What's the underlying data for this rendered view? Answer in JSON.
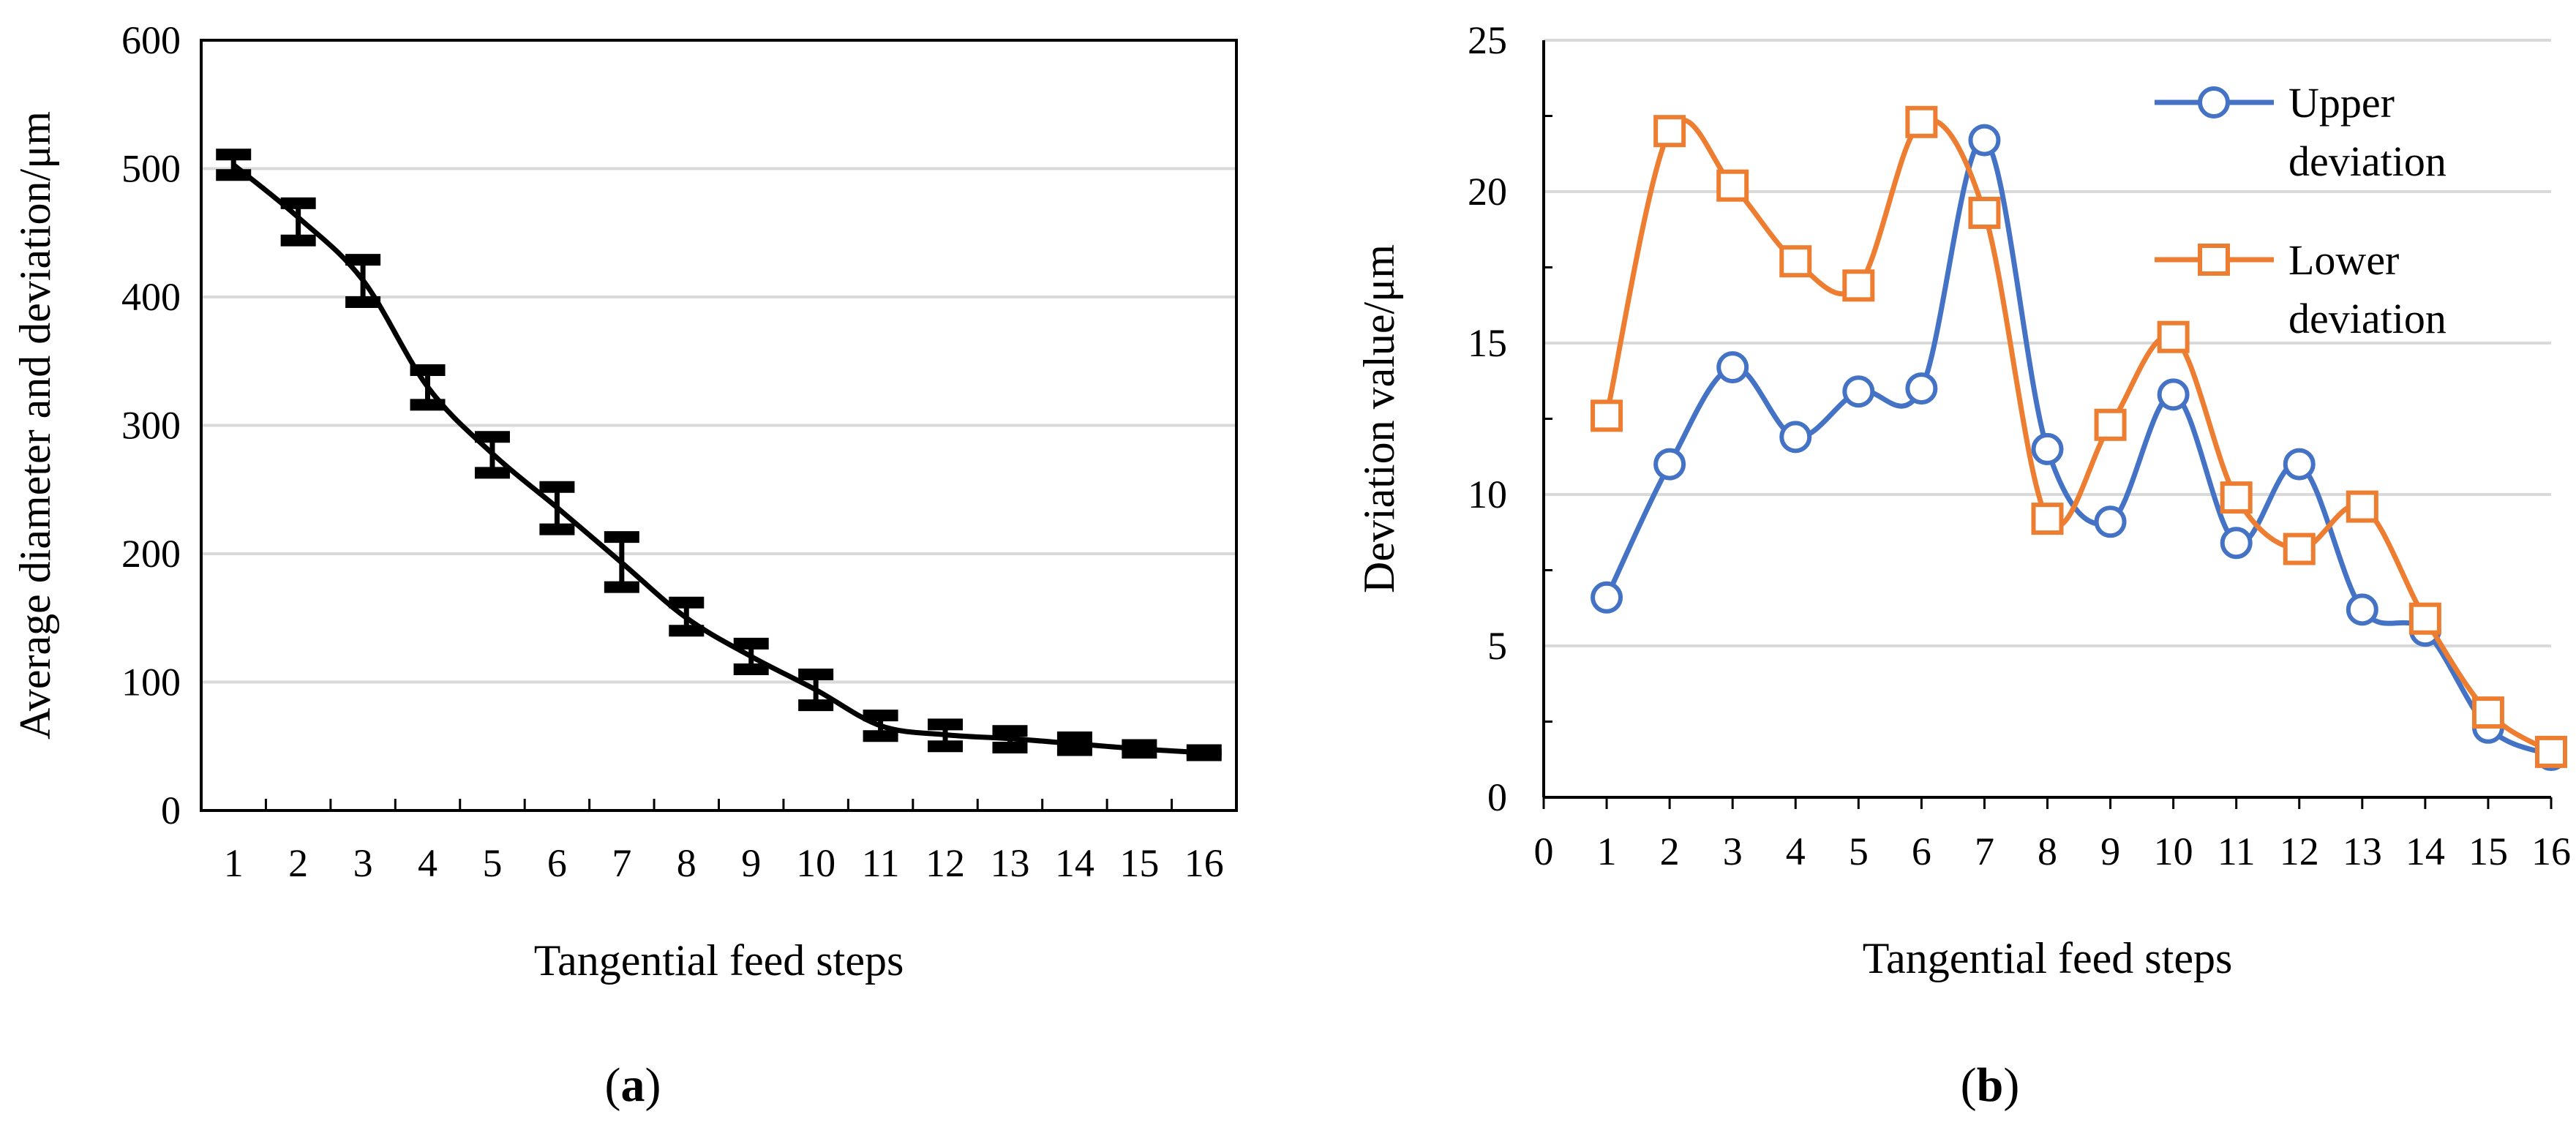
{
  "captions": {
    "a_prefix": "(",
    "a_letter": "a",
    "a_suffix": ")",
    "b_prefix": "(",
    "b_letter": "b",
    "b_suffix": ")"
  },
  "colors": {
    "upper": "#4472C4",
    "lower": "#ED7D31",
    "series_a": "#000000",
    "grid": "#d9d9d9"
  },
  "chart_data": [
    {
      "id": "a",
      "type": "line",
      "xlabel": "Tangential feed steps",
      "ylabel": "Average diameter and deviation/μm",
      "ylim": [
        0,
        600
      ],
      "yticks": [
        0,
        100,
        200,
        300,
        400,
        500,
        600
      ],
      "categories": [
        "1",
        "2",
        "3",
        "4",
        "5",
        "6",
        "7",
        "8",
        "9",
        "10",
        "11",
        "12",
        "13",
        "14",
        "15",
        "16"
      ],
      "grid": "horizontal",
      "series": [
        {
          "name": "Average diameter",
          "values": [
            503,
            462,
            413,
            330,
            278,
            236,
            193,
            150,
            120,
            94,
            66,
            59,
            56,
            52,
            48,
            45
          ],
          "error_low": [
            8,
            18,
            17,
            14,
            15,
            17,
            19,
            10,
            10,
            12,
            8,
            9,
            7,
            5,
            3,
            2
          ],
          "error_high": [
            8,
            11,
            16,
            13,
            13,
            16,
            20,
            12,
            10,
            12,
            8,
            8,
            6,
            5,
            3,
            2
          ]
        }
      ]
    },
    {
      "id": "b",
      "type": "line",
      "xlabel": "Tangential feed steps",
      "ylabel": "Deviation value/μm",
      "ylim": [
        0,
        25
      ],
      "xlim": [
        0,
        16
      ],
      "yticks": [
        0,
        5,
        10,
        15,
        20,
        25
      ],
      "xticks": [
        "0",
        "1",
        "2",
        "3",
        "4",
        "5",
        "6",
        "7",
        "8",
        "9",
        "10",
        "11",
        "12",
        "13",
        "14",
        "15",
        "16"
      ],
      "x": [
        1,
        2,
        3,
        4,
        5,
        6,
        7,
        8,
        9,
        10,
        11,
        12,
        13,
        14,
        15,
        16
      ],
      "grid": "horizontal",
      "legend_position": "top-right",
      "series": [
        {
          "name": "Upper deviation",
          "legend_lines": [
            "Upper",
            "deviation"
          ],
          "marker": "circle",
          "values": [
            6.6,
            11.0,
            14.2,
            11.9,
            13.4,
            13.5,
            21.7,
            11.5,
            9.1,
            13.3,
            8.4,
            11.0,
            6.2,
            5.5,
            2.3,
            1.4
          ]
        },
        {
          "name": "Lower deviation",
          "legend_lines": [
            "Lower",
            "deviation"
          ],
          "marker": "square",
          "values": [
            12.6,
            22.0,
            20.2,
            17.7,
            16.9,
            22.3,
            19.3,
            9.2,
            12.3,
            15.2,
            9.9,
            8.2,
            9.6,
            5.9,
            2.8,
            1.5
          ]
        }
      ]
    }
  ]
}
